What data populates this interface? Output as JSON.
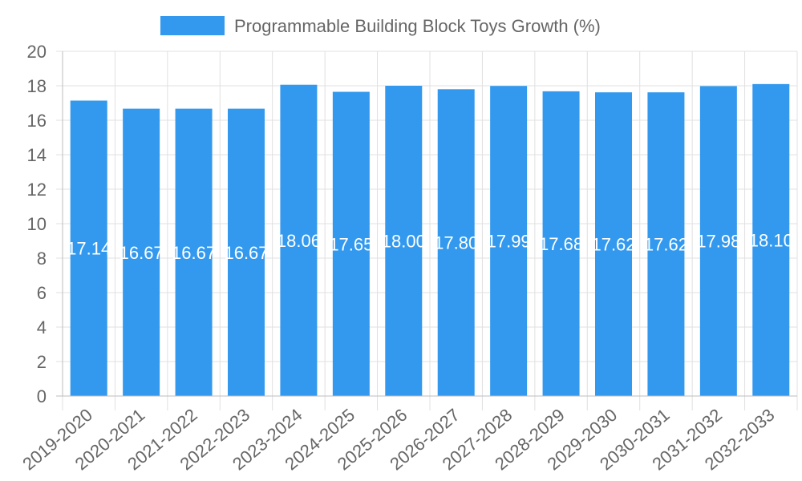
{
  "colors": {
    "bar": "#3399EE",
    "grid": "#E0E0E0",
    "axis": "#BDBDBD",
    "text": "#666666",
    "label": "#FFFFFF"
  },
  "chart_data": {
    "type": "bar",
    "categories": [
      "2019-2020",
      "2020-2021",
      "2021-2022",
      "2022-2023",
      "2023-2024",
      "2024-2025",
      "2025-2026",
      "2026-2027",
      "2027-2028",
      "2028-2029",
      "2029-2030",
      "2030-2031",
      "2031-2032",
      "2032-2033"
    ],
    "series": [
      {
        "name": "Programmable Building Block Toys Growth (%)",
        "values": [
          17.14,
          16.67,
          16.67,
          16.67,
          18.06,
          17.65,
          18.0,
          17.8,
          17.99,
          17.68,
          17.62,
          17.62,
          17.98,
          18.1
        ],
        "labels": [
          "17.14",
          "16.67",
          "16.67",
          "16.67",
          "18.06",
          "17.65",
          "18.00",
          "17.80",
          "17.99",
          "17.68",
          "17.62",
          "17.62",
          "17.98",
          "18.10"
        ]
      }
    ],
    "ylim": [
      0,
      20
    ],
    "yticks": [
      "0",
      "2",
      "4",
      "6",
      "8",
      "10",
      "12",
      "14",
      "16",
      "18",
      "20"
    ],
    "grid": true,
    "legend": "top-center"
  }
}
